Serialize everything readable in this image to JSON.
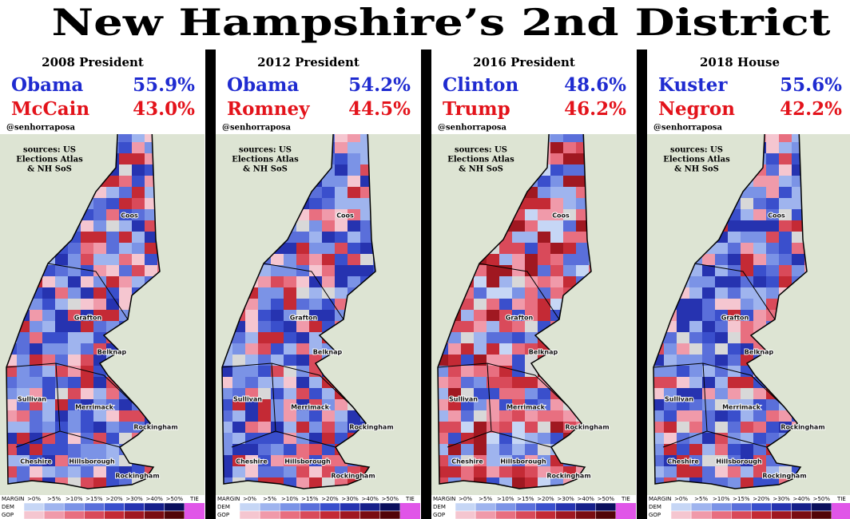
{
  "title": "New Hampshire’s 2nd District",
  "panels": [
    {
      "heading": "2008 President",
      "candidates": [
        {
          "name": "Obama",
          "share": "55.9%"
        },
        {
          "name": "McCain",
          "share": "43.0%"
        }
      ]
    },
    {
      "heading": "2012 President",
      "candidates": [
        {
          "name": "Obama",
          "share": "54.2%"
        },
        {
          "name": "Romney",
          "share": "44.5%"
        }
      ]
    },
    {
      "heading": "2016 President",
      "candidates": [
        {
          "name": "Clinton",
          "share": "48.6%"
        },
        {
          "name": "Trump",
          "share": "46.2%"
        }
      ]
    },
    {
      "heading": "2018 House",
      "candidates": [
        {
          "name": "Kuster",
          "share": "55.6%"
        },
        {
          "name": "Negron",
          "share": "42.2%"
        }
      ]
    }
  ],
  "credit": "@senhorraposa",
  "sources": [
    "sources: US",
    "Elections Atlas",
    "& NH SoS"
  ],
  "county_labels": [
    "Coos",
    "Grafton",
    "Belknap",
    "Sullivan",
    "Merrimack",
    "Rockingham",
    "Cheshire",
    "Hillsborough",
    "Rockingham"
  ],
  "legend": {
    "header": [
      "MARGIN",
      ">0%",
      ">5%",
      ">10%",
      ">15%",
      ">20%",
      ">30%",
      ">40%",
      ">50%",
      "TIE"
    ],
    "rows": [
      "DEM",
      "GOP"
    ]
  }
}
